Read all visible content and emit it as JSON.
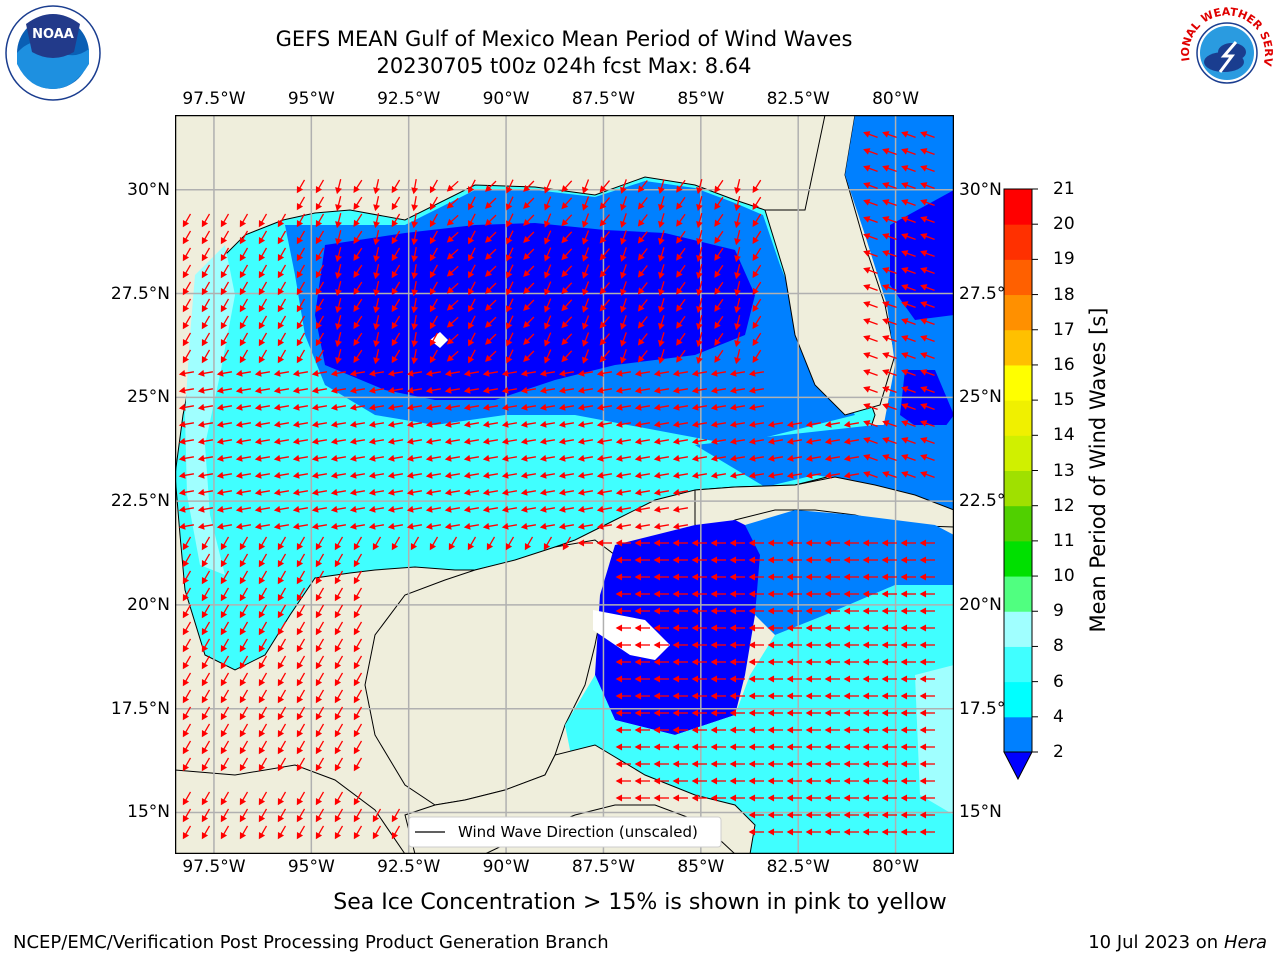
{
  "header": {
    "title_line1": "GEFS MEAN Gulf of Mexico Mean Period of Wind Waves",
    "title_line2": "20230705 t00z 024h fcst   Max: 8.64"
  },
  "logos": {
    "left": "NOAA",
    "left_ring": "NATIONAL OCEANIC AND ATMOSPHERIC ADMINISTRATION · U.S. DEPARTMENT OF COMMERCE",
    "right_ring": "NATIONAL WEATHER SERVICE"
  },
  "axes": {
    "lon_ticks": [
      "97.5°W",
      "95°W",
      "92.5°W",
      "90°W",
      "87.5°W",
      "85°W",
      "82.5°W",
      "80°W"
    ],
    "lat_ticks": [
      "30°N",
      "27.5°N",
      "25°N",
      "22.5°N",
      "20°N",
      "17.5°N",
      "15°N"
    ]
  },
  "legend": {
    "label": "Wind Wave Direction (unscaled)"
  },
  "colorbar": {
    "title": "Mean Period of Wind Waves [s]",
    "ticks": [
      "2",
      "4",
      "6",
      "8",
      "9",
      "10",
      "11",
      "12",
      "13",
      "14",
      "15",
      "16",
      "17",
      "18",
      "19",
      "20",
      "21"
    ],
    "colors": [
      "#0000ff",
      "#0080ff",
      "#00ffff",
      "#40ffff",
      "#a0ffff",
      "#40ff80",
      "#00e000",
      "#50d000",
      "#a0e000",
      "#d0f000",
      "#f0f000",
      "#ffff00",
      "#ffc000",
      "#ff9000",
      "#ff6000",
      "#ff3000",
      "#ff0000"
    ]
  },
  "notes": {
    "sea_ice": "Sea Ice Concentration > 15% is shown in pink to yellow",
    "credit": "NCEP/EMC/Verification Post Processing Product Generation Branch",
    "date_prefix": "10 Jul 2023 on ",
    "date_host": "Hera"
  },
  "chart_data": {
    "type": "heatmap",
    "title": "GEFS MEAN Gulf of Mexico Mean Period of Wind Waves",
    "subtitle": "20230705 t00z 024h fcst   Max: 8.64",
    "max": 8.64,
    "units": "s",
    "xlabel": "",
    "ylabel": "",
    "xlim": [
      -98.5,
      -78.5
    ],
    "ylim": [
      14,
      31.8
    ],
    "grid": true,
    "legend_position": "bottom",
    "colorbar_levels": [
      2,
      4,
      6,
      8,
      9,
      10,
      11,
      12,
      13,
      14,
      15,
      16,
      17,
      18,
      19,
      20,
      21
    ],
    "colors": {
      "land": "#efeedc",
      "period_2_4": "#0000ff",
      "period_4_6": "#0080ff",
      "period_6_8": "#00ffff",
      "period_8_9": "#40ffff",
      "arrows": "#ff0000"
    }
  }
}
